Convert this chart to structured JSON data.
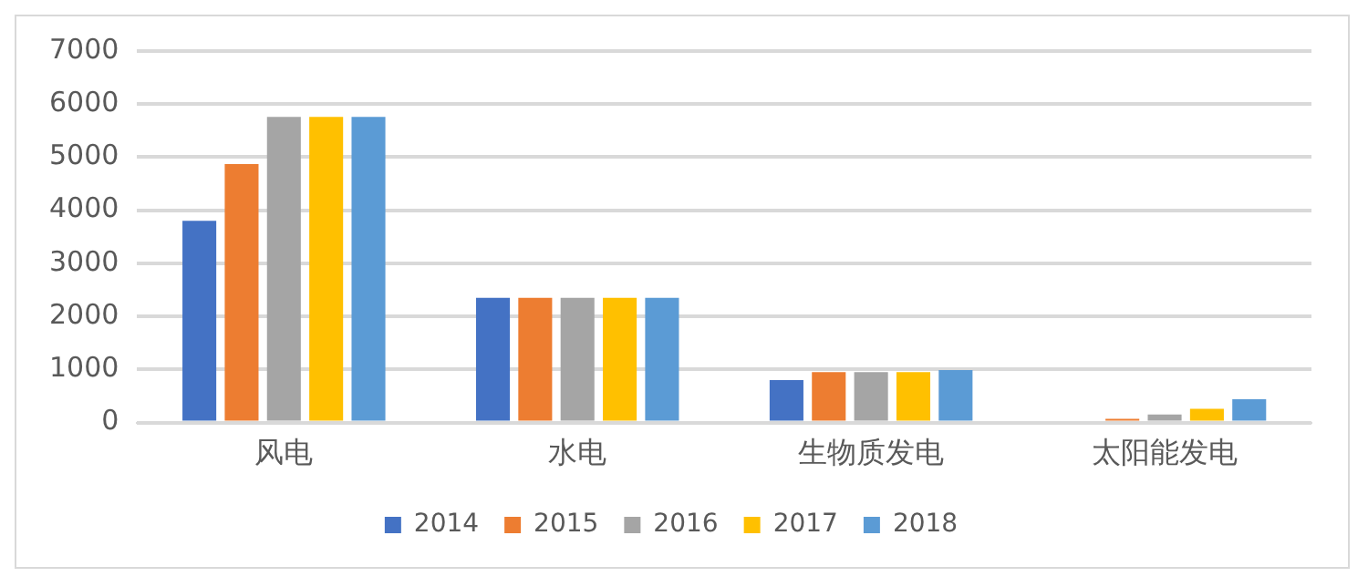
{
  "chart_data": {
    "type": "bar",
    "categories": [
      "风电",
      "水电",
      "生物质发电",
      "太阳能发电"
    ],
    "series": [
      {
        "name": "2014",
        "color": "#4472c4",
        "values": [
          3800,
          2350,
          800,
          0
        ]
      },
      {
        "name": "2015",
        "color": "#ed7d31",
        "values": [
          4870,
          2350,
          950,
          70
        ]
      },
      {
        "name": "2016",
        "color": "#a5a5a5",
        "values": [
          5760,
          2350,
          950,
          150
        ]
      },
      {
        "name": "2017",
        "color": "#ffc000",
        "values": [
          5760,
          2350,
          950,
          260
        ]
      },
      {
        "name": "2018",
        "color": "#5b9bd5",
        "values": [
          5760,
          2350,
          990,
          440
        ]
      }
    ],
    "ylim": [
      0,
      7000
    ],
    "yticks": [
      0,
      1000,
      2000,
      3000,
      4000,
      5000,
      6000,
      7000
    ],
    "grid": "y",
    "legend": "bottom"
  }
}
